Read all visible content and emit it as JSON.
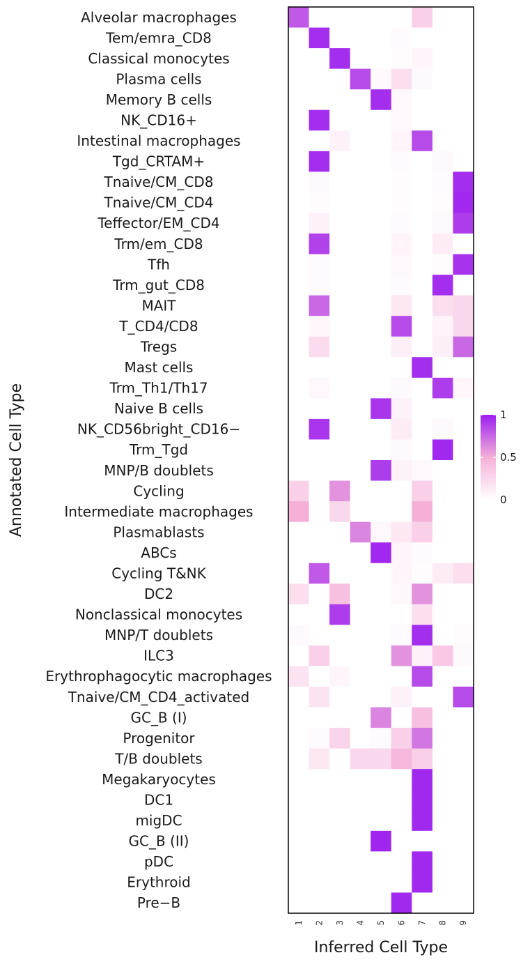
{
  "chart_data": {
    "type": "heatmap",
    "xlabel": "Inferred Cell Type",
    "ylabel": "Annotated Cell Type",
    "x": [
      "1",
      "2",
      "3",
      "4",
      "5",
      "6",
      "7",
      "8",
      "9"
    ],
    "y": [
      "Alveolar macrophages",
      "Tem/emra_CD8",
      "Classical monocytes",
      "Plasma cells",
      "Memory B cells",
      "NK_CD16+",
      "Intestinal macrophages",
      "Tgd_CRTAM+",
      "Tnaive/CM_CD8",
      "Tnaive/CM_CD4",
      "Teffector/EM_CD4",
      "Trm/em_CD8",
      "Tfh",
      "Trm_gut_CD8",
      "MAIT",
      "T_CD4/CD8",
      "Tregs",
      "Mast cells",
      "Trm_Th1/Th17",
      "Naive B cells",
      "NK_CD56bright_CD16−",
      "Trm_Tgd",
      "MNP/B doublets",
      "Cycling",
      "Intermediate macrophages",
      "Plasmablasts",
      "ABCs",
      "Cycling T&NK",
      "DC2",
      "Nonclassical monocytes",
      "MNP/T doublets",
      "ILC3",
      "Erythrophagocytic macrophages",
      "Tnaive/CM_CD4_activated",
      "GC_B (I)",
      "Progenitor",
      "T/B doublets",
      "Megakaryocytes",
      "DC1",
      "migDC",
      "GC_B (II)",
      "pDC",
      "Erythroid",
      "Pre−B"
    ],
    "values": [
      [
        0.8,
        0,
        0,
        0,
        0,
        0,
        0.3,
        0,
        0
      ],
      [
        0,
        0.95,
        0,
        0,
        0,
        0.03,
        0,
        0,
        0
      ],
      [
        0,
        0,
        0.95,
        0,
        0,
        0.02,
        0.06,
        0,
        0
      ],
      [
        0,
        0,
        0,
        0.85,
        0.04,
        0.2,
        0.04,
        0,
        0
      ],
      [
        0,
        0,
        0,
        0,
        0.95,
        0.05,
        0,
        0,
        0
      ],
      [
        0,
        0.95,
        0,
        0,
        0,
        0.05,
        0,
        0,
        0
      ],
      [
        0,
        0,
        0.08,
        0,
        0,
        0.07,
        0.85,
        0,
        0
      ],
      [
        0,
        0.95,
        0,
        0,
        0,
        0.03,
        0,
        0.04,
        0
      ],
      [
        0,
        0.04,
        0,
        0,
        0,
        0.02,
        0,
        0.03,
        0.95
      ],
      [
        0,
        0.02,
        0,
        0,
        0,
        0.02,
        0,
        0.02,
        0.97
      ],
      [
        0,
        0.08,
        0,
        0,
        0,
        0.03,
        0,
        0.04,
        0.9
      ],
      [
        0,
        0.88,
        0,
        0,
        0,
        0.07,
        0,
        0.12,
        0
      ],
      [
        0,
        0.03,
        0,
        0,
        0,
        0.05,
        0,
        0.02,
        0.93
      ],
      [
        0,
        0.03,
        0,
        0,
        0,
        0.03,
        0,
        0.95,
        0
      ],
      [
        0,
        0.75,
        0,
        0,
        0,
        0.15,
        0,
        0.2,
        0.25
      ],
      [
        0,
        0.06,
        0,
        0,
        0,
        0.85,
        0,
        0.07,
        0.25
      ],
      [
        0,
        0.22,
        0,
        0,
        0,
        0.1,
        0,
        0.1,
        0.75
      ],
      [
        0,
        0,
        0,
        0,
        0,
        0,
        0.95,
        0,
        0
      ],
      [
        0,
        0.05,
        0,
        0,
        0,
        0.04,
        0,
        0.9,
        0.06
      ],
      [
        0,
        0,
        0,
        0,
        0.92,
        0.08,
        0,
        0,
        0
      ],
      [
        0,
        0.92,
        0,
        0,
        0,
        0.12,
        0,
        0.04,
        0
      ],
      [
        0,
        0,
        0,
        0,
        0,
        0.04,
        0,
        0.97,
        0
      ],
      [
        0,
        0,
        0,
        0,
        0.9,
        0.08,
        0.05,
        0,
        0
      ],
      [
        0.3,
        0,
        0.6,
        0,
        0,
        0,
        0.3,
        0,
        0
      ],
      [
        0.5,
        0,
        0.25,
        0,
        0,
        0,
        0.5,
        0,
        0
      ],
      [
        0,
        0,
        0,
        0.65,
        0.05,
        0.15,
        0.3,
        0,
        0
      ],
      [
        0,
        0,
        0,
        0,
        0.97,
        0.06,
        0.03,
        0,
        0
      ],
      [
        0,
        0.8,
        0,
        0,
        0,
        0.06,
        0.02,
        0.12,
        0.2
      ],
      [
        0.2,
        0,
        0.4,
        0,
        0,
        0.05,
        0.6,
        0,
        0
      ],
      [
        0,
        0,
        0.9,
        0,
        0,
        0,
        0.2,
        0,
        0
      ],
      [
        0.04,
        0,
        0,
        0,
        0,
        0.03,
        0.95,
        0,
        0.02
      ],
      [
        0,
        0.3,
        0,
        0,
        0,
        0.6,
        0.08,
        0.35,
        0.04
      ],
      [
        0.18,
        0,
        0.06,
        0,
        0,
        0,
        0.85,
        0,
        0
      ],
      [
        0,
        0.18,
        0,
        0,
        0,
        0.08,
        0,
        0,
        0.85
      ],
      [
        0,
        0,
        0,
        0,
        0.65,
        0,
        0.4,
        0,
        0
      ],
      [
        0,
        0.03,
        0.28,
        0,
        0.03,
        0.3,
        0.7,
        0,
        0
      ],
      [
        0,
        0.15,
        0,
        0.25,
        0.25,
        0.45,
        0.3,
        0,
        0
      ],
      [
        0,
        0,
        0,
        0,
        0,
        0,
        0.97,
        0,
        0
      ],
      [
        0,
        0,
        0,
        0,
        0,
        0,
        0.97,
        0,
        0
      ],
      [
        0,
        0,
        0,
        0,
        0,
        0,
        0.97,
        0,
        0
      ],
      [
        0,
        0,
        0,
        0,
        0.98,
        0,
        0,
        0,
        0
      ],
      [
        0,
        0,
        0,
        0,
        0,
        0,
        0.97,
        0,
        0
      ],
      [
        0,
        0,
        0,
        0,
        0,
        0,
        0.97,
        0,
        0
      ],
      [
        0,
        0,
        0,
        0,
        0,
        0.97,
        0,
        0,
        0
      ]
    ],
    "zlim": [
      0,
      1
    ],
    "legend": {
      "ticks": [
        "1",
        "0.5",
        "0"
      ],
      "low_color": "#ffffff",
      "mid_color": "#f5b0d8",
      "high_color": "#9b1ff0",
      "placement": "right"
    },
    "grid": false
  }
}
